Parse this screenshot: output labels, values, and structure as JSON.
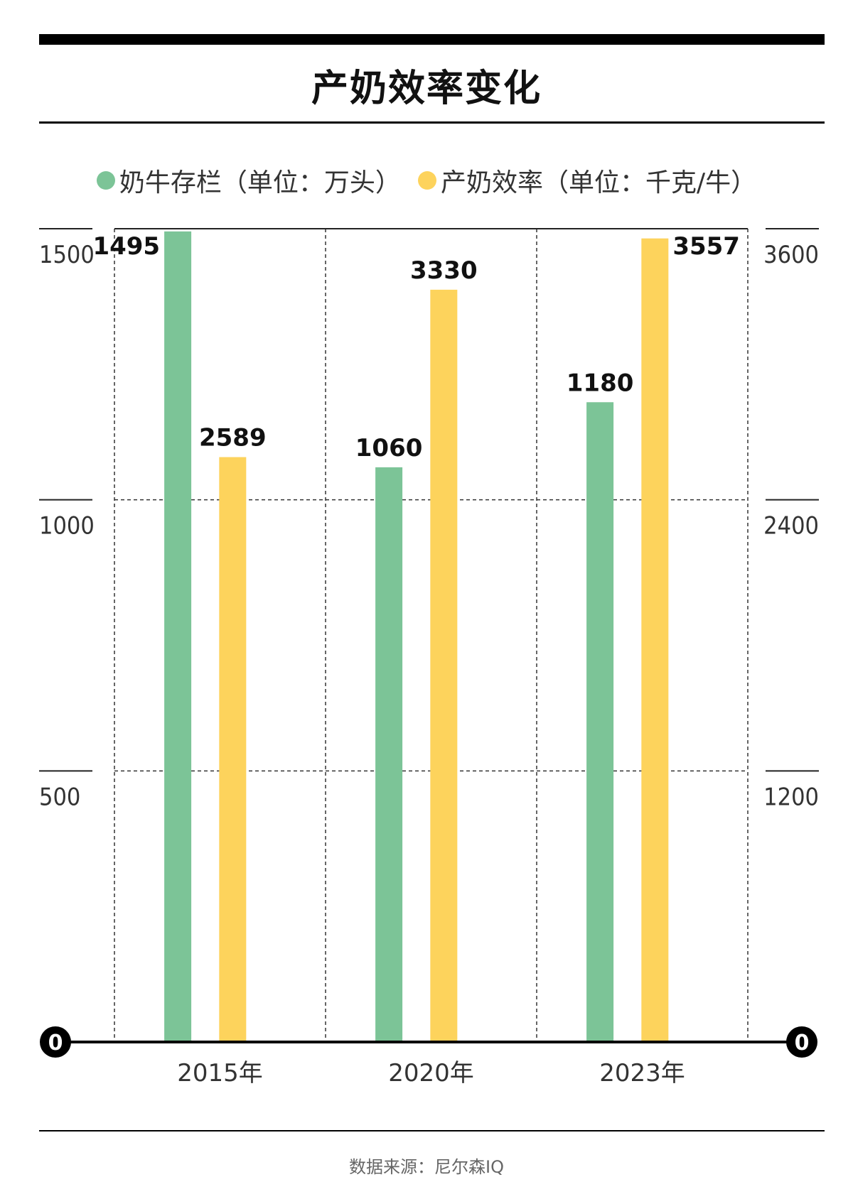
{
  "title": "产奶效率变化",
  "legend": {
    "left_label": "奶牛存栏（单位：万头）",
    "right_label": "产奶效率（单位：千克/牛）"
  },
  "source": "数据来源：尼尔森IQ",
  "colors": {
    "green": "#7cc497",
    "yellow": "#fdd35c"
  },
  "chart_data": {
    "type": "bar",
    "categories": [
      "2015年",
      "2020年",
      "2023年"
    ],
    "series": [
      {
        "name": "奶牛存栏（单位：万头）",
        "axis": "left",
        "color": "#7cc497",
        "values": [
          1495,
          1060,
          1180
        ]
      },
      {
        "name": "产奶效率（单位：千克/牛）",
        "axis": "right",
        "color": "#fdd35c",
        "values": [
          2589,
          3330,
          3557
        ]
      }
    ],
    "left_axis": {
      "ticks": [
        500,
        1000,
        1500
      ],
      "ylim": [
        0,
        1500
      ]
    },
    "right_axis": {
      "ticks": [
        1200,
        2400,
        3600
      ],
      "ylim": [
        0,
        3600
      ]
    },
    "zero_label": "0",
    "grid": true,
    "legend_position": "top"
  }
}
